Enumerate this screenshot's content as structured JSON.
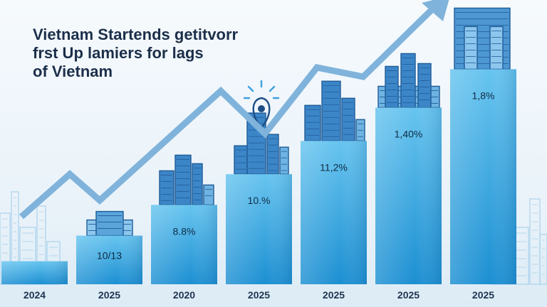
{
  "chart_data": {
    "type": "bar",
    "title_lines": [
      "Vietnam Startends getitvorr",
      "frst Up lamiers for lags",
      "of Vietnam"
    ],
    "categories": [
      "2024",
      "2025",
      "2020",
      "2025",
      "2025",
      "2025",
      "2025"
    ],
    "values": [
      18,
      38,
      62,
      86,
      112,
      138,
      168
    ],
    "data_labels": [
      "",
      "10/13",
      "8.8%",
      "10.%",
      "11,2%",
      "1,40%",
      "1,8%"
    ],
    "ylim": [
      0,
      180
    ],
    "trend_line": true,
    "grid": false,
    "legend": "none",
    "colors": {
      "bar_top": "#67c4ef",
      "bar_bottom": "#1c8fd2",
      "trend": "#7fb3db",
      "skyline": "#1e5b96",
      "skyline_light": "#8fc3e6"
    }
  }
}
